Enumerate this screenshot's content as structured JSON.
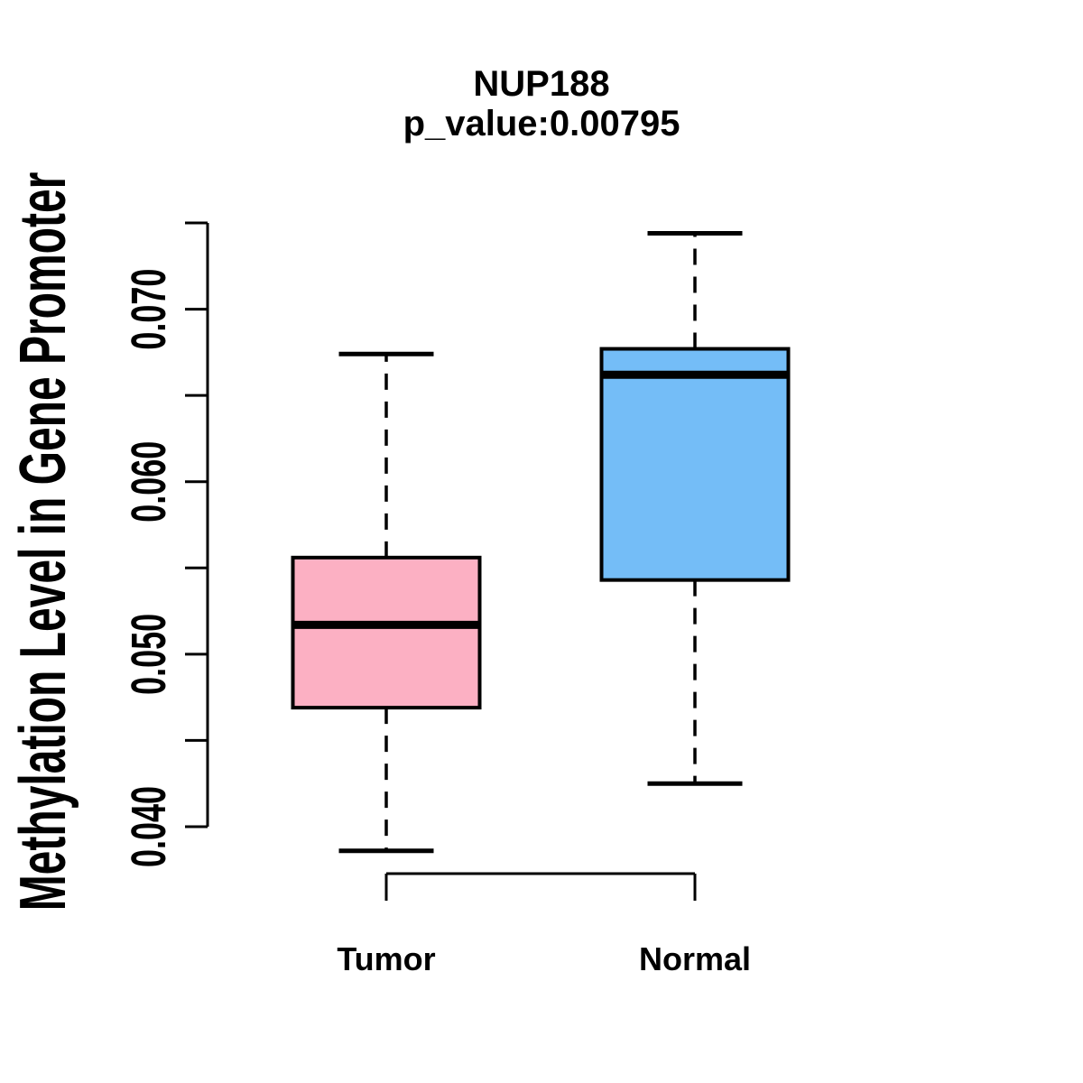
{
  "figure": {
    "background": "#ffffff",
    "foreground": "#000000"
  },
  "chart_data": {
    "type": "boxplot",
    "title": "NUP188",
    "subtitle": "p_value:0.00795",
    "xlabel": "",
    "ylabel": "Methylation Level in Gene Promoter",
    "categories": [
      "Tumor",
      "Normal"
    ],
    "series": [
      {
        "name": "Tumor",
        "fill": "#FCB0C3",
        "whisker_low": 0.0386,
        "q1": 0.0469,
        "median": 0.0517,
        "q3": 0.0556,
        "whisker_high": 0.0674,
        "outliers": []
      },
      {
        "name": "Normal",
        "fill": "#74BDF7",
        "whisker_low": 0.0425,
        "q1": 0.0543,
        "median": 0.0662,
        "q3": 0.0677,
        "whisker_high": 0.0744,
        "outliers": []
      }
    ],
    "yaxis": {
      "min": 0.04,
      "max": 0.075,
      "tick_step": 0.005,
      "labeled_ticks": [
        0.04,
        0.05,
        0.06,
        0.07
      ],
      "tick_label_decimals": 3
    },
    "grid": false,
    "legend": null
  }
}
